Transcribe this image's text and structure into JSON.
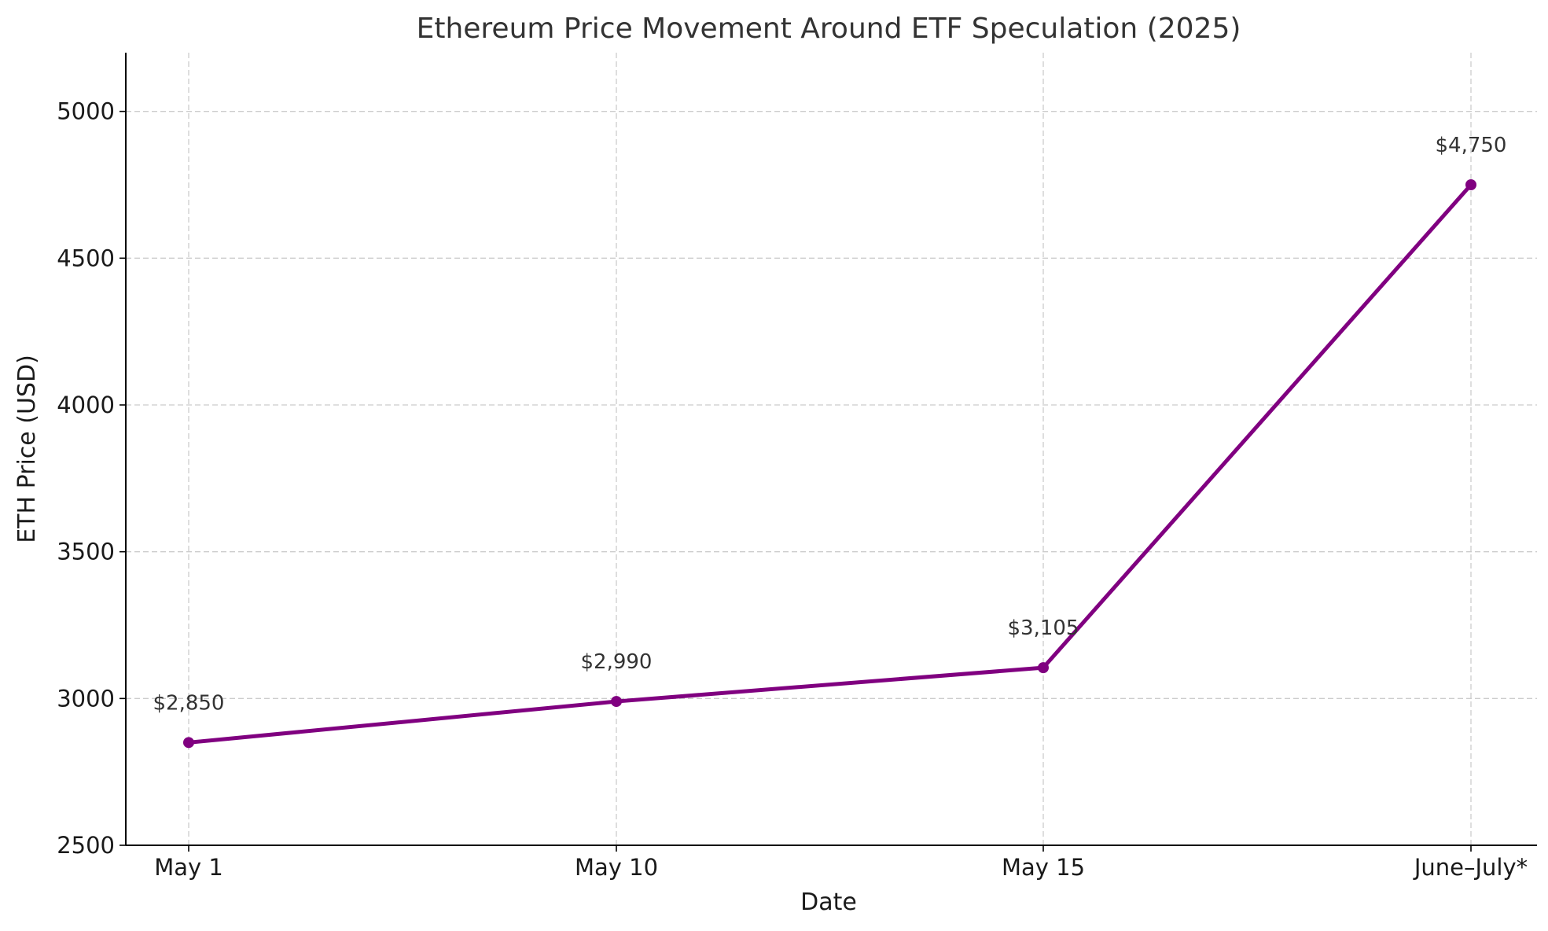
{
  "chart_data": {
    "type": "line",
    "title": "Ethereum Price Movement Around ETF Speculation (2025)",
    "xlabel": "Date",
    "ylabel": "ETH Price (USD)",
    "categories": [
      "May 1",
      "May 10",
      "May 15",
      "June–July*"
    ],
    "series": [
      {
        "name": "ETH Price",
        "values": [
          2850,
          2990,
          3105,
          4750
        ],
        "labels": [
          "$2,850",
          "$2,990",
          "$3,105",
          "$4,750"
        ],
        "color": "#800080",
        "marker": "circle"
      }
    ],
    "ylim": [
      2500,
      5200
    ],
    "yticks": [
      2500,
      3000,
      3500,
      4000,
      4500,
      5000
    ],
    "yticklabels": [
      "2500",
      "3000",
      "3500",
      "4000",
      "4500",
      "5000"
    ],
    "grid": true,
    "grid_color": "#cccccc"
  }
}
